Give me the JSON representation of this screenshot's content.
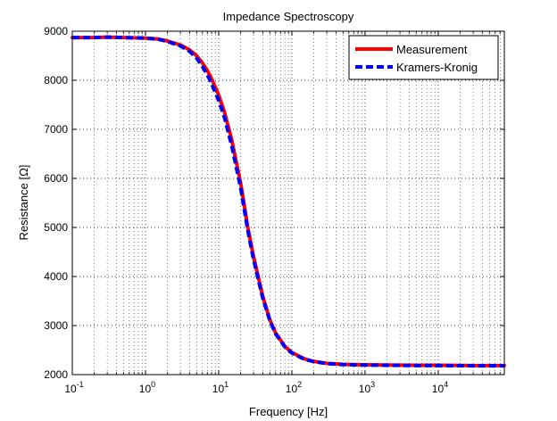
{
  "chart_data": {
    "type": "line",
    "title": "Impedance Spectroscopy",
    "xlabel": "Frequency [Hz]",
    "ylabel": "Resistance [Ω]",
    "xscale": "log",
    "xlim": [
      0.1,
      80000
    ],
    "ylim": [
      2000,
      9000
    ],
    "grid": true,
    "legend_position": "top-right",
    "x_ticks": [
      0.1,
      1,
      10,
      100,
      1000,
      10000
    ],
    "x_tick_labels": [
      {
        "base": "10",
        "exp": "-1"
      },
      {
        "base": "10",
        "exp": "0"
      },
      {
        "base": "10",
        "exp": "1"
      },
      {
        "base": "10",
        "exp": "2"
      },
      {
        "base": "10",
        "exp": "3"
      },
      {
        "base": "10",
        "exp": "4"
      }
    ],
    "y_ticks": [
      2000,
      3000,
      4000,
      5000,
      6000,
      7000,
      8000,
      9000
    ],
    "y_tick_labels": [
      "2000",
      "3000",
      "4000",
      "5000",
      "6000",
      "7000",
      "8000",
      "9000"
    ],
    "series": [
      {
        "name": "Measurement",
        "color": "#ff0000",
        "style": "solid",
        "x": [
          0.1,
          0.2,
          0.3,
          0.5,
          1,
          1.5,
          2,
          3,
          4,
          5,
          6,
          7,
          8,
          10,
          12,
          15,
          20,
          25,
          30,
          40,
          50,
          60,
          80,
          100,
          150,
          200,
          300,
          500,
          1000,
          2000,
          5000,
          10000,
          30000,
          80000
        ],
        "y": [
          8870,
          8870,
          8880,
          8870,
          8860,
          8840,
          8800,
          8720,
          8620,
          8500,
          8350,
          8200,
          8030,
          7700,
          7350,
          6800,
          5900,
          5000,
          4400,
          3600,
          3120,
          2850,
          2580,
          2450,
          2320,
          2270,
          2230,
          2210,
          2200,
          2195,
          2190,
          2190,
          2185,
          2185
        ]
      },
      {
        "name": "Kramers-Kronig",
        "color": "#0000ff",
        "style": "dashed",
        "x": [
          0.1,
          0.2,
          0.3,
          0.5,
          1,
          1.5,
          2,
          3,
          4,
          5,
          6,
          7,
          8,
          10,
          12,
          15,
          20,
          25,
          30,
          40,
          50,
          60,
          80,
          100,
          150,
          200,
          300,
          500,
          1000,
          2000,
          5000,
          10000,
          30000,
          80000
        ],
        "y": [
          8870,
          8870,
          8880,
          8870,
          8860,
          8835,
          8790,
          8700,
          8590,
          8450,
          8280,
          8110,
          7930,
          7590,
          7240,
          6680,
          5800,
          4940,
          4340,
          3560,
          3100,
          2830,
          2570,
          2440,
          2310,
          2265,
          2225,
          2205,
          2195,
          2190,
          2185,
          2185,
          2180,
          2180
        ]
      }
    ]
  }
}
